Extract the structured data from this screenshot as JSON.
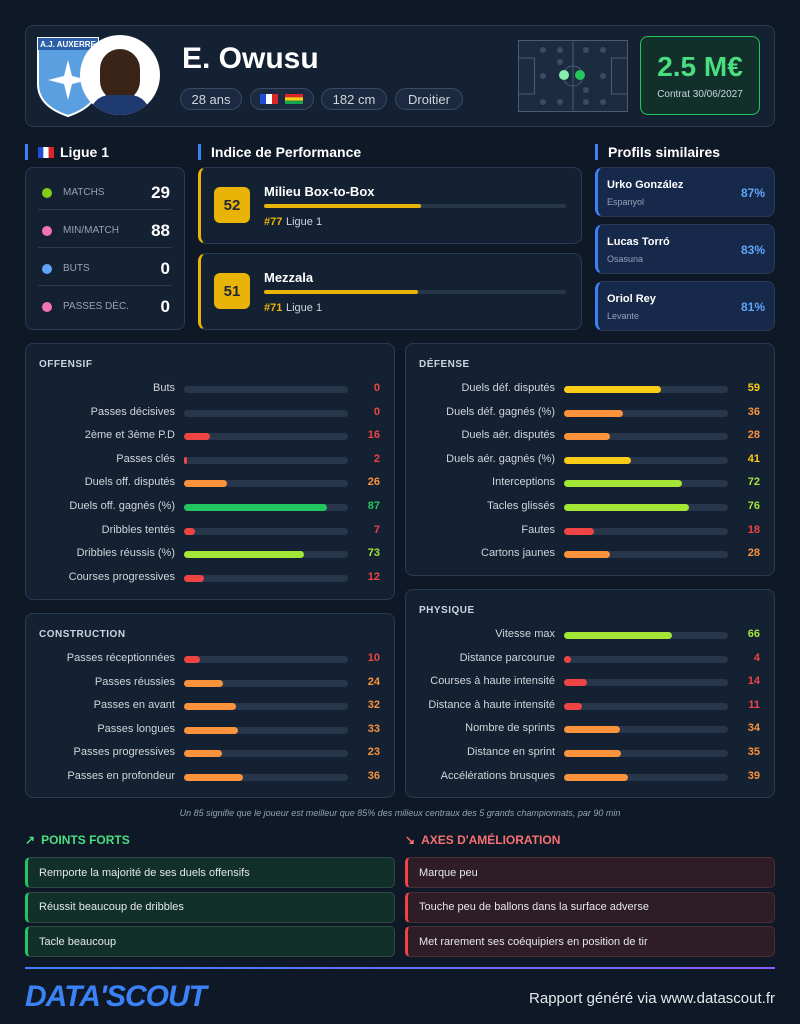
{
  "header": {
    "club": "A.J. AUXERRE",
    "name": "E. Owusu",
    "age": "28 ans",
    "height": "182 cm",
    "foot": "Droitier",
    "value": "2.5 M€",
    "contract": "Contrat 30/06/2027"
  },
  "league_stats": {
    "league": "Ligue 1",
    "rows": [
      {
        "label": "MATCHS",
        "value": 29
      },
      {
        "label": "MIN/MATCH",
        "value": 88
      },
      {
        "label": "BUTS",
        "value": 0
      },
      {
        "label": "PASSES DÉC.",
        "value": 0
      }
    ]
  },
  "performance": {
    "title": "Indice de Performance",
    "xlim": [
      0,
      100
    ],
    "items": [
      {
        "score": 52,
        "role": "Milieu Box-to-Box",
        "rank": "#77",
        "league": "Ligue 1"
      },
      {
        "score": 51,
        "role": "Mezzala",
        "rank": "#71",
        "league": "Ligue 1"
      }
    ]
  },
  "similar": {
    "title": "Profils similaires",
    "items": [
      {
        "name": "Urko González",
        "club": "Espanyol",
        "match": "87%"
      },
      {
        "name": "Lucas Torró",
        "club": "Osasuna",
        "match": "83%"
      },
      {
        "name": "Oriol Rey",
        "club": "Levante",
        "match": "81%"
      }
    ]
  },
  "xlim": [
    0,
    100
  ],
  "sections": [
    {
      "title": "OFFENSIF",
      "rows": [
        {
          "label": "Buts",
          "value": 0
        },
        {
          "label": "Passes décisives",
          "value": 0
        },
        {
          "label": "2ème et 3ème P.D",
          "value": 16
        },
        {
          "label": "Passes clés",
          "value": 2
        },
        {
          "label": "Duels off. disputés",
          "value": 26
        },
        {
          "label": "Duels off. gagnés (%)",
          "value": 87
        },
        {
          "label": "Dribbles tentés",
          "value": 7
        },
        {
          "label": "Dribbles réussis (%)",
          "value": 73
        },
        {
          "label": "Courses progressives",
          "value": 12
        }
      ]
    },
    {
      "title": "DÉFENSE",
      "rows": [
        {
          "label": "Duels déf. disputés",
          "value": 59
        },
        {
          "label": "Duels déf. gagnés (%)",
          "value": 36
        },
        {
          "label": "Duels aér. disputés",
          "value": 28
        },
        {
          "label": "Duels aér. gagnés (%)",
          "value": 41
        },
        {
          "label": "Interceptions",
          "value": 72
        },
        {
          "label": "Tacles glissés",
          "value": 76
        },
        {
          "label": "Fautes",
          "value": 18
        },
        {
          "label": "Cartons jaunes",
          "value": 28
        }
      ]
    },
    {
      "title": "CONSTRUCTION",
      "rows": [
        {
          "label": "Passes réceptionnées",
          "value": 10
        },
        {
          "label": "Passes réussies",
          "value": 24
        },
        {
          "label": "Passes en avant",
          "value": 32
        },
        {
          "label": "Passes longues",
          "value": 33
        },
        {
          "label": "Passes progressives",
          "value": 23
        },
        {
          "label": "Passes en profondeur",
          "value": 36
        }
      ]
    },
    {
      "title": "PHYSIQUE",
      "rows": [
        {
          "label": "Vitesse max",
          "value": 66
        },
        {
          "label": "Distance parcourue",
          "value": 4
        },
        {
          "label": "Courses à haute intensité",
          "value": 14
        },
        {
          "label": "Distance à haute intensité",
          "value": 11
        },
        {
          "label": "Nombre de sprints",
          "value": 34
        },
        {
          "label": "Distance en sprint",
          "value": 35
        },
        {
          "label": "Accélérations brusques",
          "value": 39
        }
      ]
    }
  ],
  "footnote": "Un 85 signifie que le joueur est meilleur que 85% des milieux centraux des 5 grands championnats, par 90 min",
  "strengths": {
    "title": "POINTS FORTS",
    "items": [
      "Remporte la majorité de ses duels offensifs",
      "Réussit beaucoup de dribbles",
      "Tacle beaucoup"
    ]
  },
  "weaknesses": {
    "title": "AXES D'AMÉLIORATION",
    "items": [
      "Marque peu",
      "Touche peu de ballons dans la surface adverse",
      "Met rarement ses coéquipiers en position de tir"
    ]
  },
  "footer": {
    "logo": "DATA'SCOUT",
    "text": "Rapport généré via www.datascout.fr"
  }
}
